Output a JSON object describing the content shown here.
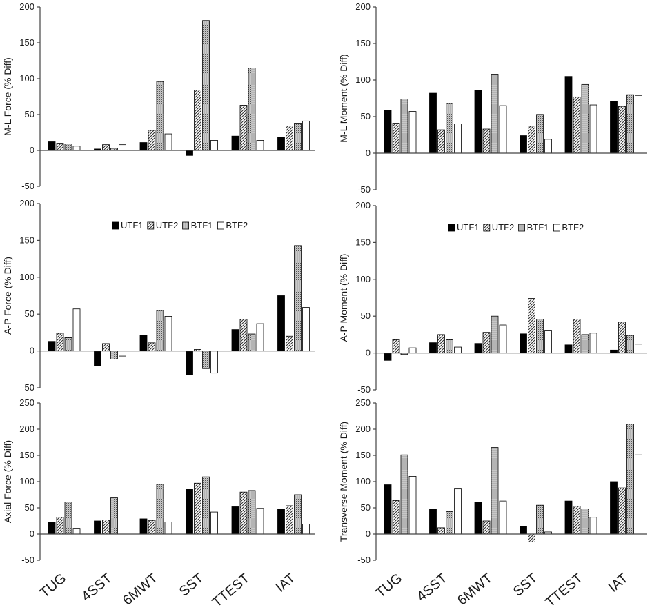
{
  "series_colors": {
    "UTF1": "#000000",
    "UTF2": "#ffffff",
    "BTF1": "#bdbdbd",
    "BTF2": "#ffffff"
  },
  "chart_data": [
    {
      "type": "bar",
      "ylabel": "M-L Force (% Diff)",
      "ylim": [
        -50,
        200
      ],
      "yticks": [
        -50,
        0,
        50,
        100,
        150,
        200
      ],
      "categories": [
        "TUG",
        "4SST",
        "6MWT",
        "SST",
        "TTEST",
        "IAT"
      ],
      "show_categories": false,
      "legend": null,
      "series": [
        {
          "name": "UTF1",
          "values": [
            12,
            2,
            11,
            -7,
            20,
            18
          ]
        },
        {
          "name": "UTF2",
          "values": [
            10,
            8,
            28,
            84,
            63,
            34
          ]
        },
        {
          "name": "BTF1",
          "values": [
            9,
            3,
            96,
            181,
            115,
            38
          ]
        },
        {
          "name": "BTF2",
          "values": [
            6,
            8,
            23,
            14,
            14,
            41
          ]
        }
      ]
    },
    {
      "type": "bar",
      "ylabel": "M-L Moment (% Diff)",
      "ylim": [
        -50,
        200
      ],
      "yticks": [
        -50,
        0,
        50,
        100,
        150,
        200
      ],
      "categories": [
        "TUG",
        "4SST",
        "6MWT",
        "SST",
        "TTEST",
        "IAT"
      ],
      "show_categories": false,
      "legend": null,
      "series": [
        {
          "name": "UTF1",
          "values": [
            59,
            82,
            86,
            24,
            105,
            71
          ]
        },
        {
          "name": "UTF2",
          "values": [
            41,
            32,
            33,
            37,
            77,
            64
          ]
        },
        {
          "name": "BTF1",
          "values": [
            74,
            68,
            108,
            53,
            94,
            80
          ]
        },
        {
          "name": "BTF2",
          "values": [
            57,
            40,
            65,
            19,
            66,
            79
          ]
        }
      ]
    },
    {
      "type": "bar",
      "ylabel": "A-P Force (% Diff)",
      "ylim": [
        -50,
        200
      ],
      "yticks": [
        -50,
        0,
        50,
        100,
        150,
        200
      ],
      "categories": [
        "TUG",
        "4SST",
        "6MWT",
        "SST",
        "TTEST",
        "IAT"
      ],
      "show_categories": false,
      "legend": "top-center",
      "series": [
        {
          "name": "UTF1",
          "values": [
            13,
            -20,
            21,
            -32,
            29,
            75
          ]
        },
        {
          "name": "UTF2",
          "values": [
            24,
            10,
            11,
            2,
            43,
            20
          ]
        },
        {
          "name": "BTF1",
          "values": [
            18,
            -11,
            55,
            -24,
            23,
            143
          ]
        },
        {
          "name": "BTF2",
          "values": [
            57,
            -7,
            47,
            -30,
            37,
            59
          ]
        }
      ]
    },
    {
      "type": "bar",
      "ylabel": "A-P Moment (% Diff)",
      "ylim": [
        -50,
        200
      ],
      "yticks": [
        -50,
        0,
        50,
        100,
        150,
        200
      ],
      "categories": [
        "TUG",
        "4SST",
        "6MWT",
        "SST",
        "TTEST",
        "IAT"
      ],
      "show_categories": false,
      "legend": "top-center",
      "series": [
        {
          "name": "UTF1",
          "values": [
            -10,
            14,
            13,
            26,
            11,
            4
          ]
        },
        {
          "name": "UTF2",
          "values": [
            18,
            25,
            28,
            74,
            46,
            42
          ]
        },
        {
          "name": "BTF1",
          "values": [
            -2,
            18,
            50,
            46,
            25,
            24
          ]
        },
        {
          "name": "BTF2",
          "values": [
            7,
            8,
            38,
            30,
            27,
            12
          ]
        }
      ]
    },
    {
      "type": "bar",
      "ylabel": "Axial Force (% Diff)",
      "ylim": [
        -50,
        250
      ],
      "yticks": [
        -50,
        0,
        50,
        100,
        150,
        200,
        250
      ],
      "categories": [
        "TUG",
        "4SST",
        "6MWT",
        "SST",
        "TTEST",
        "IAT"
      ],
      "show_categories": true,
      "legend": null,
      "series": [
        {
          "name": "UTF1",
          "values": [
            22,
            25,
            29,
            85,
            52,
            47
          ]
        },
        {
          "name": "UTF2",
          "values": [
            32,
            27,
            26,
            97,
            80,
            54
          ]
        },
        {
          "name": "BTF1",
          "values": [
            61,
            69,
            95,
            109,
            83,
            75
          ]
        },
        {
          "name": "BTF2",
          "values": [
            11,
            44,
            23,
            42,
            49,
            19
          ]
        }
      ]
    },
    {
      "type": "bar",
      "ylabel": "Transverse Moment (% Diff)",
      "ylim": [
        -50,
        250
      ],
      "yticks": [
        -50,
        0,
        50,
        100,
        150,
        200,
        250
      ],
      "categories": [
        "TUG",
        "4SST",
        "6MWT",
        "SST",
        "TTEST",
        "IAT"
      ],
      "show_categories": true,
      "legend": null,
      "series": [
        {
          "name": "UTF1",
          "values": [
            94,
            47,
            60,
            14,
            63,
            100
          ]
        },
        {
          "name": "UTF2",
          "values": [
            64,
            12,
            25,
            -15,
            53,
            88
          ]
        },
        {
          "name": "BTF1",
          "values": [
            151,
            43,
            165,
            55,
            48,
            210
          ]
        },
        {
          "name": "BTF2",
          "values": [
            110,
            86,
            63,
            4,
            32,
            151
          ]
        }
      ]
    }
  ]
}
